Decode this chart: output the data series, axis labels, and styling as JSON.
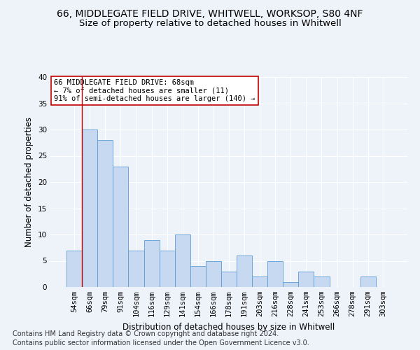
{
  "title_line1": "66, MIDDLEGATE FIELD DRIVE, WHITWELL, WORKSOP, S80 4NF",
  "title_line2": "Size of property relative to detached houses in Whitwell",
  "xlabel": "Distribution of detached houses by size in Whitwell",
  "ylabel": "Number of detached properties",
  "categories": [
    "54sqm",
    "66sqm",
    "79sqm",
    "91sqm",
    "104sqm",
    "116sqm",
    "129sqm",
    "141sqm",
    "154sqm",
    "166sqm",
    "178sqm",
    "191sqm",
    "203sqm",
    "216sqm",
    "228sqm",
    "241sqm",
    "253sqm",
    "266sqm",
    "278sqm",
    "291sqm",
    "303sqm"
  ],
  "values": [
    7,
    30,
    28,
    23,
    7,
    9,
    7,
    10,
    4,
    5,
    3,
    6,
    2,
    5,
    1,
    3,
    2,
    0,
    0,
    2,
    0
  ],
  "bar_color": "#c6d9f0",
  "bar_edge_color": "#5b9bd5",
  "highlight_bar_index": 1,
  "highlight_line_color": "#c00000",
  "annotation_line1": "66 MIDDLEGATE FIELD DRIVE: 68sqm",
  "annotation_line2": "← 7% of detached houses are smaller (11)",
  "annotation_line3": "91% of semi-detached houses are larger (140) →",
  "annotation_box_color": "white",
  "annotation_box_edge": "#c00000",
  "ylim": [
    0,
    40
  ],
  "yticks": [
    0,
    5,
    10,
    15,
    20,
    25,
    30,
    35,
    40
  ],
  "footer_line1": "Contains HM Land Registry data © Crown copyright and database right 2024.",
  "footer_line2": "Contains public sector information licensed under the Open Government Licence v3.0.",
  "background_color": "#eef2f9",
  "grid_color": "#ffffff",
  "title_fontsize": 10,
  "subtitle_fontsize": 9.5,
  "axis_label_fontsize": 8.5,
  "tick_fontsize": 7.5,
  "footer_fontsize": 7,
  "annot_fontsize": 7.5
}
